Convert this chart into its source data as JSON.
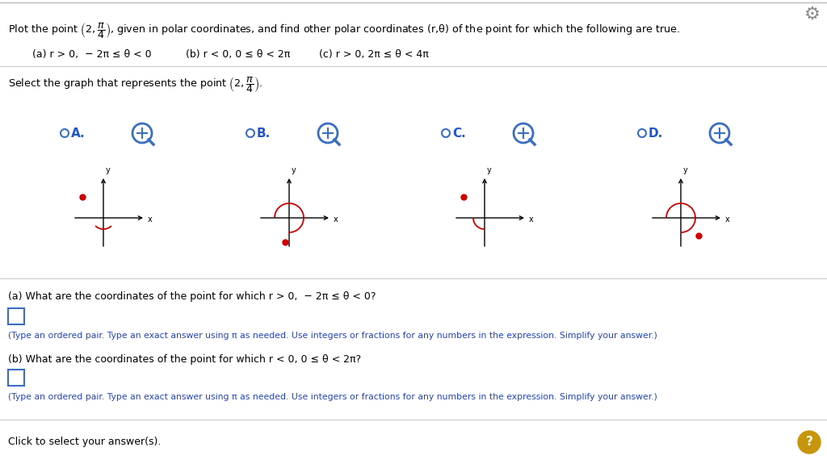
{
  "bg_color": "#ffffff",
  "gear_color": "#666666",
  "title_line": "Plot the point $\\left(2,\\dfrac{\\pi}{4}\\right)$, given in polar coordinates, and find other polar coordinates (r,θ) of the point for which the following are true.",
  "cond_a": "(a) r > 0,  − 2π ≤ θ < 0",
  "cond_b": "(b) r < 0, 0 ≤ θ < 2π",
  "cond_c": "(c) r > 0, 2π ≤ θ < 4π",
  "select_line": "Select the graph that represents the point $\\left(2,\\dfrac{\\pi}{4}\\right)$.",
  "options": [
    "A.",
    "B.",
    "C.",
    "D."
  ],
  "radio_color": "#3a6ec0",
  "blue_bold_color": "#2255cc",
  "blue_text_color": "#2244bb",
  "black_color": "#000000",
  "point_color": "#cc0000",
  "arc_color": "#cc0000",
  "qa_a": "(a) What are the coordinates of the point for which r > 0,  − 2π ≤ θ < 0?",
  "qa_b": "(b) What are the coordinates of the point for which r < 0, 0 ≤ θ < 2π?",
  "hint": "(Type an ordered pair. Type an exact answer using π as needed. Use integers or fractions for any numbers in the expression. Simplify your answer.)",
  "click": "Click to select your answer(s).",
  "qmark_color": "#c8960c"
}
